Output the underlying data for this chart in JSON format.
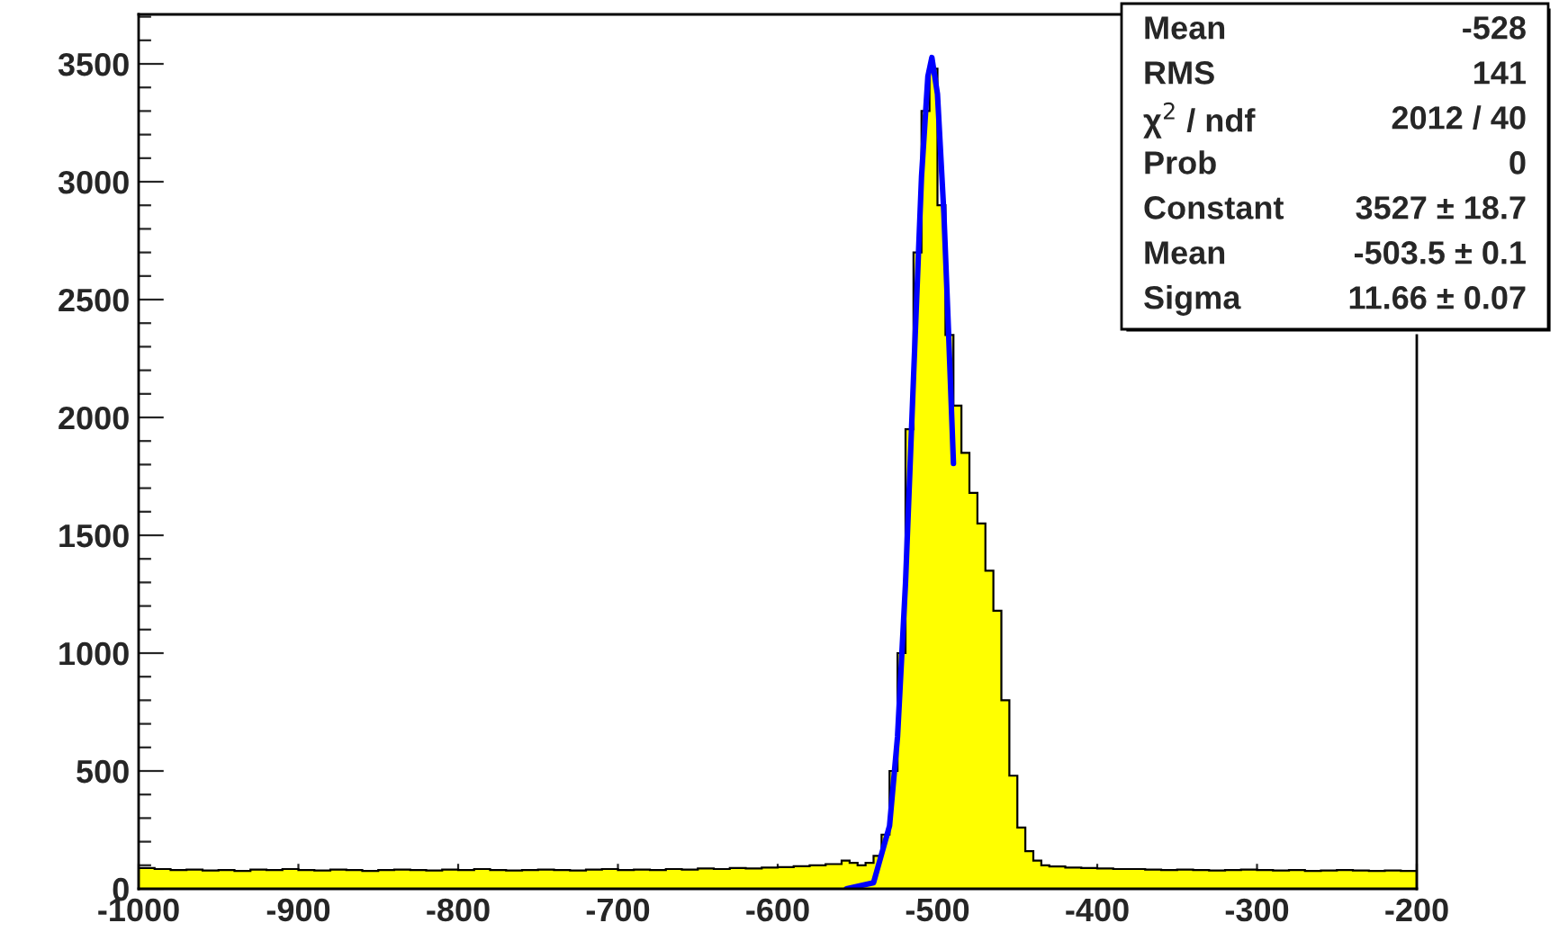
{
  "chart_data": {
    "type": "histogram",
    "bins": [
      -1000,
      -990,
      -980,
      -970,
      -960,
      -950,
      -940,
      -930,
      -920,
      -910,
      -900,
      -890,
      -880,
      -870,
      -860,
      -850,
      -840,
      -830,
      -820,
      -810,
      -800,
      -790,
      -780,
      -770,
      -760,
      -750,
      -740,
      -730,
      -720,
      -710,
      -700,
      -690,
      -680,
      -670,
      -660,
      -650,
      -640,
      -630,
      -620,
      -610,
      -600,
      -590,
      -580,
      -570,
      -560,
      -555,
      -550,
      -545,
      -540,
      -535,
      -530,
      -525,
      -520,
      -515,
      -510,
      -505,
      -500,
      -495,
      -490,
      -485,
      -480,
      -475,
      -470,
      -465,
      -460,
      -455,
      -450,
      -445,
      -440,
      -435,
      -430,
      -420,
      -410,
      -400,
      -390,
      -380,
      -370,
      -360,
      -350,
      -340,
      -330,
      -320,
      -310,
      -300,
      -290,
      -280,
      -270,
      -260,
      -250,
      -240,
      -230,
      -220,
      -210,
      -200
    ],
    "values": [
      88,
      84,
      80,
      82,
      78,
      80,
      76,
      82,
      80,
      84,
      80,
      78,
      82,
      80,
      76,
      80,
      82,
      80,
      78,
      82,
      80,
      84,
      80,
      78,
      80,
      82,
      80,
      78,
      82,
      84,
      80,
      82,
      80,
      84,
      82,
      86,
      84,
      88,
      86,
      90,
      92,
      96,
      100,
      105,
      120,
      110,
      100,
      110,
      140,
      230,
      500,
      1000,
      1950,
      2700,
      3300,
      3480,
      2900,
      2350,
      2050,
      1850,
      1680,
      1550,
      1350,
      1180,
      800,
      480,
      260,
      160,
      120,
      100,
      95,
      90,
      88,
      86,
      84,
      84,
      82,
      80,
      82,
      80,
      78,
      80,
      82,
      80,
      78,
      80,
      76,
      78,
      80,
      78,
      76,
      78,
      76
    ],
    "color": "#ffff00",
    "series": [
      {
        "type": "line",
        "color": "#0000ff",
        "x": [
          -557,
          -540,
          -530,
          -525,
          -520,
          -515,
          -510,
          -506,
          -503.5,
          -500,
          -496,
          -493,
          -490
        ],
        "values": [
          0,
          26,
          267,
          645,
          1297,
          2168,
          3019,
          3447,
          3527,
          3372,
          2868,
          2352,
          1805
        ]
      }
    ],
    "xlim": [
      -1000,
      -200
    ],
    "ylim": [
      0,
      3710
    ],
    "xticks": [
      -1000,
      -900,
      -800,
      -700,
      -600,
      -500,
      -400,
      -300,
      -200
    ],
    "yticks": [
      0,
      500,
      1000,
      1500,
      2000,
      2500,
      3000,
      3500
    ],
    "grid": false,
    "annotations": [
      "Mean",
      "-528",
      "RMS",
      "141",
      "χ$^{2}$ / ndf",
      "2012 / 40",
      "Prob",
      "0",
      "Constant",
      "3527 ± 18.7",
      "Mean",
      "-503.5 ± 0.1",
      "Sigma",
      "11.66 ± 0.07"
    ]
  }
}
